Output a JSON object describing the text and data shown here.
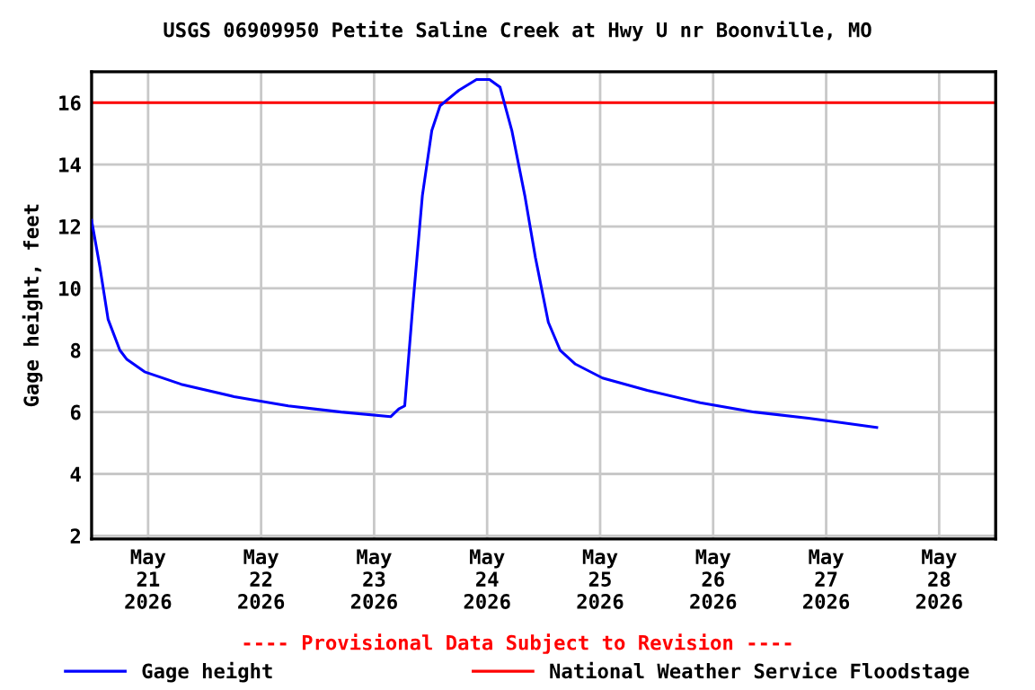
{
  "chart_data": {
    "type": "line",
    "title": "USGS 06909950 Petite Saline Creek at Hwy U nr Boonville, MO",
    "ylabel": "Gage height, feet",
    "annotations": [
      "---- Provisional Data Subject to Revision ----"
    ],
    "series": [
      {
        "name": "Gage height",
        "color": "#0000ff",
        "x": [
          "2026-05-20T12:00",
          "2026-05-20T13:45",
          "2026-05-20T15:30",
          "2026-05-20T18:00",
          "2026-05-20T19:30",
          "2026-05-20T23:15",
          "2026-05-21T07:00",
          "2026-05-21T18:15",
          "2026-05-22T05:45",
          "2026-05-22T17:00",
          "2026-05-23T03:30",
          "2026-05-23T05:15",
          "2026-05-23T06:30",
          "2026-05-23T08:15",
          "2026-05-23T10:15",
          "2026-05-23T12:15",
          "2026-05-23T14:00",
          "2026-05-23T18:00",
          "2026-05-23T21:45",
          "2026-05-24T00:30",
          "2026-05-24T02:45",
          "2026-05-24T05:15",
          "2026-05-24T08:00",
          "2026-05-24T10:15",
          "2026-05-24T13:00",
          "2026-05-24T15:30",
          "2026-05-24T18:45",
          "2026-05-25T00:30",
          "2026-05-25T10:00",
          "2026-05-25T21:15",
          "2026-05-26T08:45",
          "2026-05-26T20:15",
          "2026-05-27T03:45",
          "2026-05-27T10:45"
        ],
        "values": [
          12.2,
          10.7,
          9.0,
          8.0,
          7.7,
          7.3,
          6.9,
          6.5,
          6.2,
          6.0,
          5.85,
          6.1,
          6.2,
          9.5,
          13.0,
          15.1,
          15.9,
          16.4,
          16.75,
          16.75,
          16.5,
          15.1,
          13.0,
          11.0,
          8.9,
          8.0,
          7.55,
          7.1,
          6.7,
          6.3,
          6.0,
          5.8,
          5.65,
          5.5
        ]
      }
    ],
    "ref_lines": [
      {
        "axis": "y",
        "value": 16,
        "label": "National Weather Service Floodstage",
        "color": "#ff0000"
      }
    ],
    "xlim": [
      "2026-05-20T12:00",
      "2026-05-28T12:00"
    ],
    "xticks": [
      {
        "value": "2026-05-21",
        "label": "May\n21\n2026"
      },
      {
        "value": "2026-05-22",
        "label": "May\n22\n2026"
      },
      {
        "value": "2026-05-23",
        "label": "May\n23\n2026"
      },
      {
        "value": "2026-05-24",
        "label": "May\n24\n2026"
      },
      {
        "value": "2026-05-25",
        "label": "May\n25\n2026"
      },
      {
        "value": "2026-05-26",
        "label": "May\n26\n2026"
      },
      {
        "value": "2026-05-27",
        "label": "May\n27\n2026"
      },
      {
        "value": "2026-05-28",
        "label": "May\n28\n2026"
      }
    ],
    "ylim": [
      1.9,
      17.0
    ],
    "yticks": [
      2,
      4,
      6,
      8,
      10,
      12,
      14,
      16
    ],
    "grid": true,
    "legend": "bottom",
    "line_style": "solid",
    "marker": "none"
  }
}
